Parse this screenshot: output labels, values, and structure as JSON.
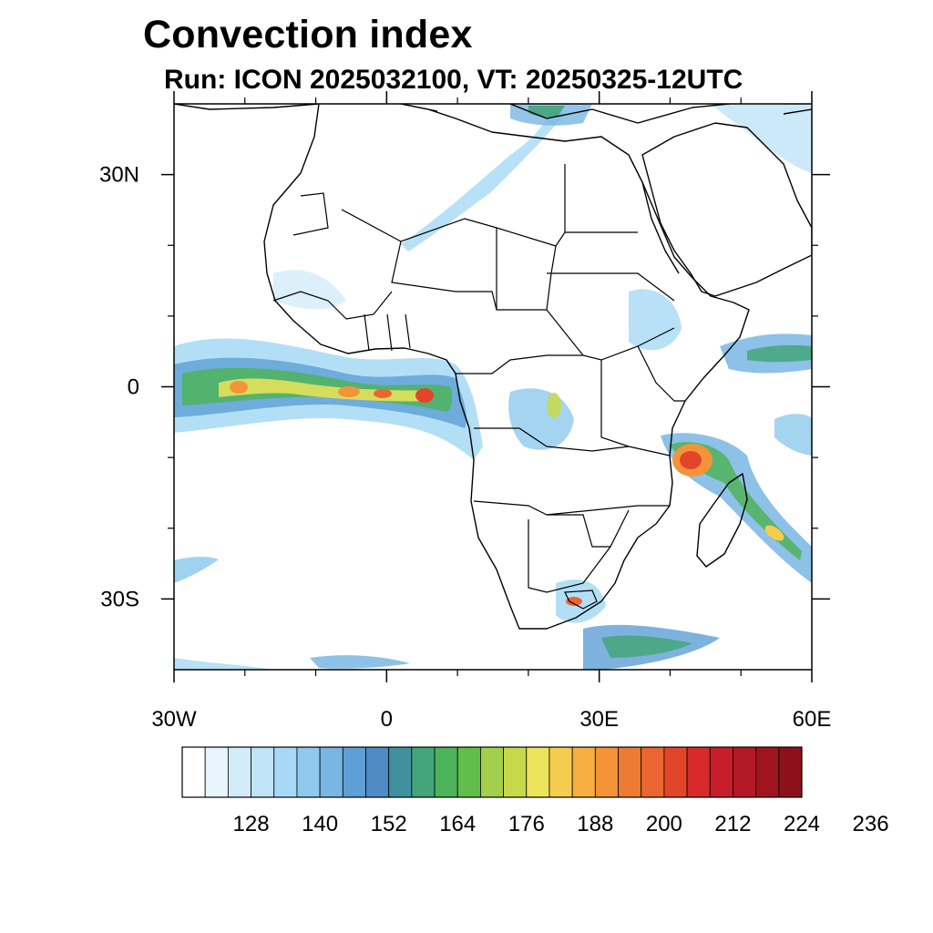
{
  "title": "Convection index",
  "subtitle": "Run: ICON 2025032100,  VT: 20250325-12UTC",
  "map": {
    "lon_range": [
      -30,
      60
    ],
    "lat_range": [
      -40,
      40
    ],
    "x_ticks": [
      {
        "lon": -30,
        "label": "30W"
      },
      {
        "lon": 0,
        "label": "0"
      },
      {
        "lon": 30,
        "label": "30E"
      },
      {
        "lon": 60,
        "label": "60E"
      }
    ],
    "y_ticks": [
      {
        "lat": 30,
        "label": "30N"
      },
      {
        "lat": 0,
        "label": "0"
      },
      {
        "lat": -30,
        "label": "30S"
      }
    ],
    "minor_lon": [
      -20,
      -10,
      10,
      20,
      40,
      50
    ],
    "minor_lat": [
      20,
      10,
      -10,
      -20
    ]
  },
  "colorbar": {
    "colors": [
      "#ffffff",
      "#e8f5fc",
      "#d2ecfa",
      "#bfe3f7",
      "#a6d9f5",
      "#8ec9ee",
      "#79b6e3",
      "#5d9fd6",
      "#4f8bc6",
      "#3f91a0",
      "#44a47a",
      "#4db35a",
      "#62be4a",
      "#a3cf4d",
      "#c7d94a",
      "#ece45b",
      "#f6cc4e",
      "#f8ae40",
      "#f59339",
      "#ef7a31",
      "#ea6630",
      "#e3452b",
      "#d82a2a",
      "#c81d2a",
      "#b41725",
      "#a0141f",
      "#8c111b"
    ],
    "labels": [
      "128",
      "140",
      "152",
      "164",
      "176",
      "188",
      "200",
      "212",
      "224",
      "236"
    ]
  }
}
